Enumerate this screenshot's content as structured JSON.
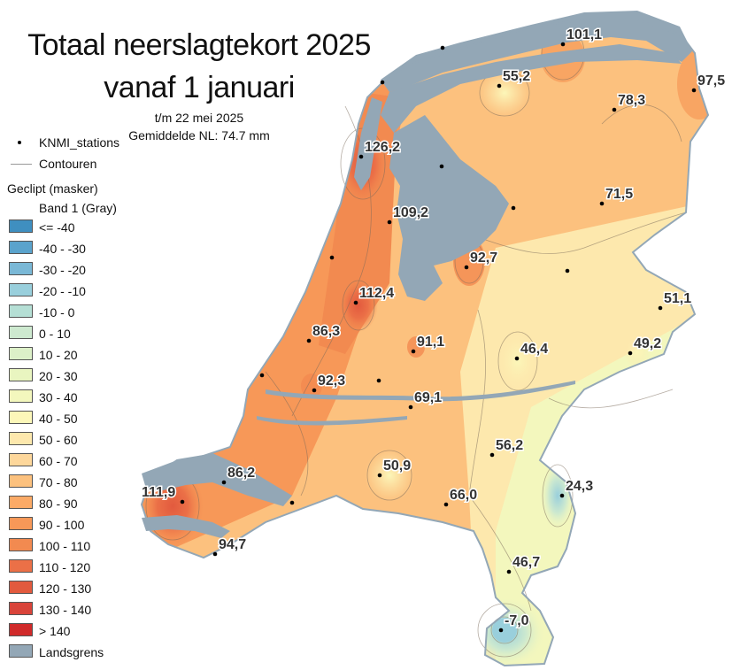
{
  "title": {
    "line1": "Totaal neerslagtekort 2025",
    "line2": "vanaf 1 januari",
    "period": "t/m 22 mei 2025",
    "average": "Gemiddelde NL: 74.7 mm"
  },
  "legend": {
    "stations_label": "KNMI_stations",
    "contours_label": "Contouren",
    "mask_label": "Geclipt (masker)",
    "band_label": "Band 1 (Gray)",
    "classes": [
      {
        "label": "<= -40",
        "color": "#3f8fc0"
      },
      {
        "label": "-40 - -30",
        "color": "#5aa3cc"
      },
      {
        "label": "-30 - -20",
        "color": "#7ab8d6"
      },
      {
        "label": "-20 - -10",
        "color": "#99cfdc"
      },
      {
        "label": "-10 - 0",
        "color": "#b5dfd5"
      },
      {
        "label": "0 - 10",
        "color": "#cde9cf"
      },
      {
        "label": "10 - 20",
        "color": "#dcf0c8"
      },
      {
        "label": "20 - 30",
        "color": "#e9f5c0"
      },
      {
        "label": "30 - 40",
        "color": "#f3f7bd"
      },
      {
        "label": "40 - 50",
        "color": "#fcf7b9"
      },
      {
        "label": "50 - 60",
        "color": "#fde8ad"
      },
      {
        "label": "60 - 70",
        "color": "#fdd79b"
      },
      {
        "label": "70 - 80",
        "color": "#fcc17e"
      },
      {
        "label": "80 - 90",
        "color": "#fbaa66"
      },
      {
        "label": "90 - 100",
        "color": "#f79858"
      },
      {
        "label": "100 - 110",
        "color": "#f28a50"
      },
      {
        "label": "110 - 120",
        "color": "#eb7047"
      },
      {
        "label": "120 - 130",
        "color": "#e25a3e"
      },
      {
        "label": "130 - 140",
        "color": "#d9443a"
      },
      {
        "label": "> 140",
        "color": "#d02a2a"
      }
    ],
    "border_label": "Landsgrens",
    "border_color": "#93a7b6"
  },
  "stations": [
    {
      "value": "101,1"
    },
    {
      "value": "55,2"
    },
    {
      "value": "78,3"
    },
    {
      "value": "97,5"
    },
    {
      "value": "126,2"
    },
    {
      "value": "109,2"
    },
    {
      "value": "71,5"
    },
    {
      "value": "92,7"
    },
    {
      "value": "112,4"
    },
    {
      "value": "51,1"
    },
    {
      "value": "86,3"
    },
    {
      "value": "91,1"
    },
    {
      "value": "46,4"
    },
    {
      "value": "49,2"
    },
    {
      "value": "92,3"
    },
    {
      "value": "69,1"
    },
    {
      "value": "56,2"
    },
    {
      "value": "50,9"
    },
    {
      "value": "86,2"
    },
    {
      "value": "111,9"
    },
    {
      "value": "66,0"
    },
    {
      "value": "24,3"
    },
    {
      "value": "94,7"
    },
    {
      "value": "46,7"
    },
    {
      "value": "-7,0"
    }
  ]
}
